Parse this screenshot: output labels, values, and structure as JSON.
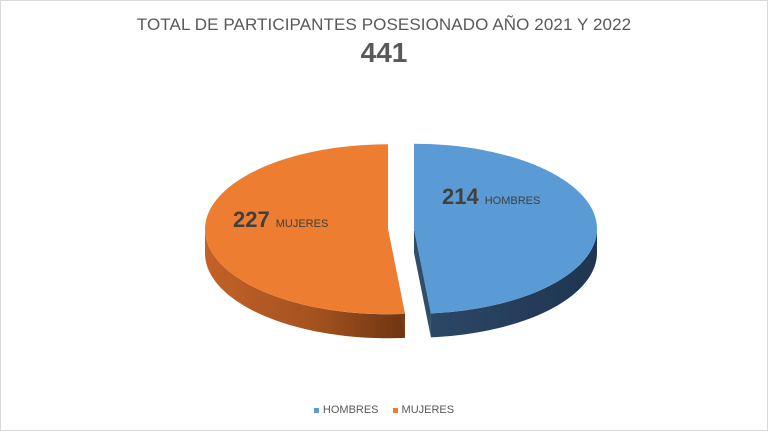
{
  "chart_data": {
    "type": "pie",
    "title": "TOTAL DE PARTICIPANTES POSESIONADO AÑO 2021 Y 2022",
    "subtitle": "441",
    "categories": [
      "HOMBRES",
      "MUJERES"
    ],
    "values": [
      214,
      227
    ],
    "colors": [
      "#5b9bd5",
      "#ed7d31"
    ],
    "data_labels": [
      {
        "value": "214",
        "category": "HOMBRES"
      },
      {
        "value": "227",
        "category": "MUJERES"
      }
    ],
    "legend_position": "bottom",
    "style": "3d-exploded"
  }
}
